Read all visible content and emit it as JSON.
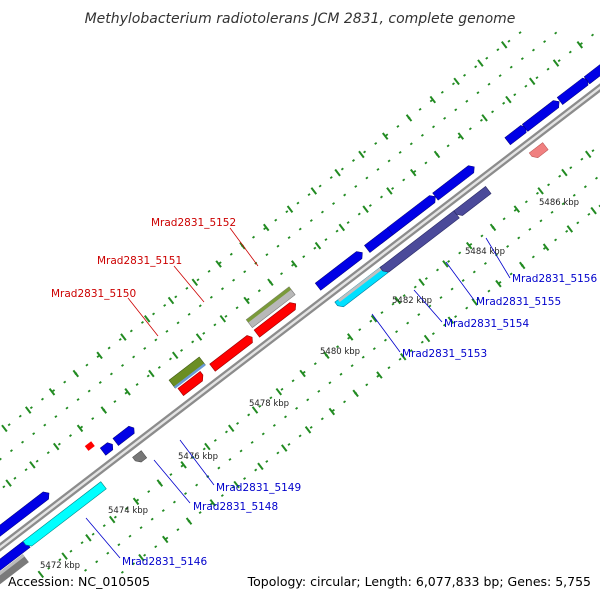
{
  "title": "Methylobacterium radiotolerans JCM 2831, complete genome",
  "footer": {
    "accession": "Accession: NC_010505",
    "summary": "Topology: circular; Length: 6,077,833 bp; Genes: 5,755"
  },
  "colors": {
    "backbone": "#999999",
    "forward_label": "#cc0000",
    "reverse_label": "#0000cc",
    "tick": "#228b22",
    "gene_blue": "#0000e6",
    "gene_red": "#ff0000",
    "gene_cyan": "#00ffff",
    "gene_gray": "#777777",
    "gene_slate": "#4b4a9a",
    "gene_olive": "#6b8e23",
    "gene_pink": "#f08080"
  },
  "scale_labels": [
    "5472 kbp",
    "5474 kbp",
    "5476 kbp",
    "5478 kbp",
    "5480 kbp",
    "5482 kbp",
    "5484 kbp",
    "5486 kbp"
  ],
  "gene_labels": {
    "forward": [
      "Mrad2831_5152",
      "Mrad2831_5151",
      "Mrad2831_5150"
    ],
    "reverse": [
      "Mrad2831_5156",
      "Mrad2831_5155",
      "Mrad2831_5154",
      "Mrad2831_5153",
      "Mrad2831_5149",
      "Mrad2831_5148",
      "Mrad2831_5146"
    ]
  }
}
